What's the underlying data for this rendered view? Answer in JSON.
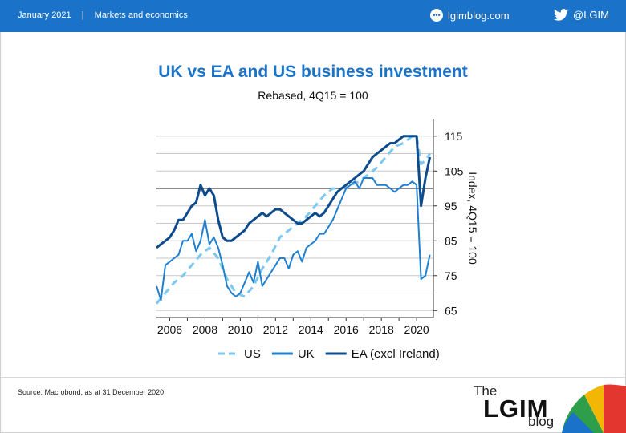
{
  "header": {
    "date": "January 2021",
    "separator": "|",
    "category": "Markets and economics",
    "site": "lgimblog.com",
    "twitter": "@LGIM"
  },
  "chart_data": {
    "type": "line",
    "title": "UK vs EA and US business investment",
    "subtitle": "Rebased, 4Q15 = 100",
    "ylabel": "Index, 4Q15 = 100",
    "ylim": [
      63,
      120
    ],
    "yticks": [
      65,
      75,
      85,
      95,
      105,
      115
    ],
    "xlim": [
      2005.25,
      2020.95
    ],
    "xticks": [
      2006,
      2008,
      2010,
      2012,
      2014,
      2016,
      2018,
      2020
    ],
    "reference_line": 100,
    "grid": true,
    "legend_position": "bottom",
    "colors": {
      "US": "#7cc8f0",
      "UK": "#1f7fd0",
      "EA": "#0d4b8c"
    },
    "series": [
      {
        "name": "US",
        "style": "dashed",
        "x": [
          2005.25,
          2005.75,
          2006.25,
          2006.75,
          2007.25,
          2007.75,
          2008.25,
          2008.75,
          2009.25,
          2009.75,
          2010.25,
          2010.75,
          2011.25,
          2011.75,
          2012.25,
          2012.75,
          2013.25,
          2013.75,
          2014.25,
          2014.75,
          2015.25,
          2015.75,
          2016.25,
          2016.75,
          2017.25,
          2017.75,
          2018.25,
          2018.75,
          2019.25,
          2019.75,
          2020.0,
          2020.25,
          2020.5,
          2020.75
        ],
        "values": [
          67,
          70,
          73,
          75,
          78,
          81,
          83,
          80,
          74,
          70,
          69,
          72,
          77,
          81,
          86,
          88,
          90,
          92,
          95,
          98,
          100,
          100,
          101,
          102,
          104,
          106,
          109,
          112,
          113,
          115,
          115,
          107,
          108,
          110
        ]
      },
      {
        "name": "UK",
        "style": "solid",
        "x": [
          2005.25,
          2005.5,
          2005.75,
          2006.0,
          2006.25,
          2006.5,
          2006.75,
          2007.0,
          2007.25,
          2007.5,
          2007.75,
          2008.0,
          2008.25,
          2008.5,
          2008.75,
          2009.0,
          2009.25,
          2009.5,
          2009.75,
          2010.0,
          2010.25,
          2010.5,
          2010.75,
          2011.0,
          2011.25,
          2011.5,
          2011.75,
          2012.0,
          2012.25,
          2012.5,
          2012.75,
          2013.0,
          2013.25,
          2013.5,
          2013.75,
          2014.0,
          2014.25,
          2014.5,
          2014.75,
          2015.0,
          2015.25,
          2015.5,
          2015.75,
          2016.0,
          2016.25,
          2016.5,
          2016.75,
          2017.0,
          2017.25,
          2017.5,
          2017.75,
          2018.0,
          2018.25,
          2018.5,
          2018.75,
          2019.0,
          2019.25,
          2019.5,
          2019.75,
          2020.0,
          2020.25,
          2020.5,
          2020.75
        ],
        "values": [
          72,
          68,
          78,
          79,
          80,
          81,
          85,
          85,
          87,
          82,
          85,
          91,
          84,
          86,
          83,
          78,
          72,
          70,
          69,
          70,
          73,
          76,
          73,
          79,
          72,
          74,
          76,
          78,
          80,
          80,
          77,
          81,
          82,
          79,
          83,
          84,
          85,
          87,
          87,
          89,
          91,
          94,
          97,
          100,
          101,
          102,
          100,
          103,
          103,
          103,
          101,
          101,
          101,
          100,
          99,
          100,
          101,
          101,
          102,
          101,
          74,
          75,
          81
        ]
      },
      {
        "name": "EA (excl Ireland)",
        "style": "solid",
        "x": [
          2005.25,
          2005.5,
          2005.75,
          2006.0,
          2006.25,
          2006.5,
          2006.75,
          2007.0,
          2007.25,
          2007.5,
          2007.75,
          2008.0,
          2008.25,
          2008.5,
          2008.75,
          2009.0,
          2009.25,
          2009.5,
          2009.75,
          2010.0,
          2010.25,
          2010.5,
          2010.75,
          2011.0,
          2011.25,
          2011.5,
          2011.75,
          2012.0,
          2012.25,
          2012.5,
          2012.75,
          2013.0,
          2013.25,
          2013.5,
          2013.75,
          2014.0,
          2014.25,
          2014.5,
          2014.75,
          2015.0,
          2015.25,
          2015.5,
          2015.75,
          2016.0,
          2016.25,
          2016.5,
          2016.75,
          2017.0,
          2017.25,
          2017.5,
          2017.75,
          2018.0,
          2018.25,
          2018.5,
          2018.75,
          2019.0,
          2019.25,
          2019.5,
          2019.75,
          2020.0,
          2020.25,
          2020.5,
          2020.75
        ],
        "values": [
          83,
          84,
          85,
          86,
          88,
          91,
          91,
          93,
          95,
          96,
          101,
          98,
          100,
          98,
          91,
          86,
          85,
          85,
          86,
          87,
          88,
          90,
          91,
          92,
          93,
          92,
          93,
          94,
          94,
          93,
          92,
          91,
          90,
          90,
          91,
          92,
          93,
          92,
          93,
          95,
          97,
          99,
          100,
          101,
          102,
          103,
          104,
          105,
          107,
          109,
          110,
          111,
          112,
          113,
          113,
          114,
          115,
          115,
          115,
          115,
          95,
          103,
          109
        ]
      }
    ]
  },
  "footer": {
    "source": "Source: Macrobond, as at 31 December 2020",
    "logo_the": "The",
    "logo_name": "LGIM",
    "logo_blog": "blog"
  }
}
